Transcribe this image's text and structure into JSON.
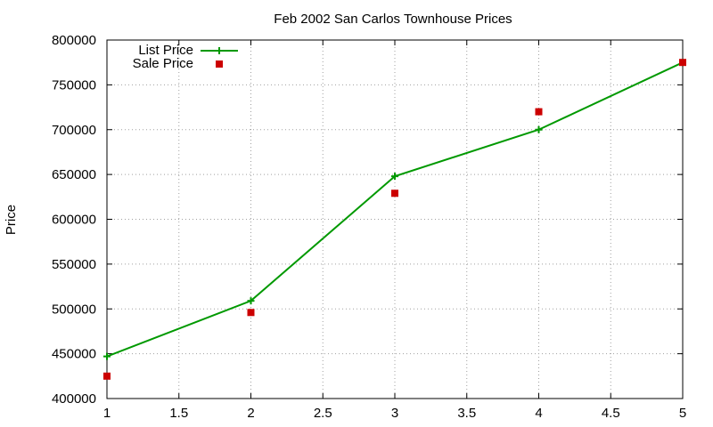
{
  "chart_data": {
    "type": "line",
    "title": "Feb 2002 San Carlos Townhouse Prices",
    "xlabel": "",
    "ylabel": "Price",
    "xlim": [
      1,
      5
    ],
    "ylim": [
      400000,
      800000
    ],
    "x_ticks": [
      "1",
      "1.5",
      "2",
      "2.5",
      "3",
      "3.5",
      "4",
      "4.5",
      "5"
    ],
    "y_ticks": [
      "400000",
      "450000",
      "500000",
      "550000",
      "600000",
      "650000",
      "700000",
      "750000",
      "800000"
    ],
    "grid": true,
    "legend_position": "top-left",
    "series": [
      {
        "name": "List Price",
        "style": "line-with-plus-markers",
        "color": "#009900",
        "x": [
          1,
          2,
          3,
          4,
          5
        ],
        "y": [
          447000,
          509000,
          648000,
          700000,
          775000
        ]
      },
      {
        "name": "Sale Price",
        "style": "square-markers",
        "color": "#cc0000",
        "x": [
          1,
          2,
          3,
          4,
          5
        ],
        "y": [
          425000,
          496000,
          629000,
          720000,
          775000
        ]
      }
    ]
  }
}
